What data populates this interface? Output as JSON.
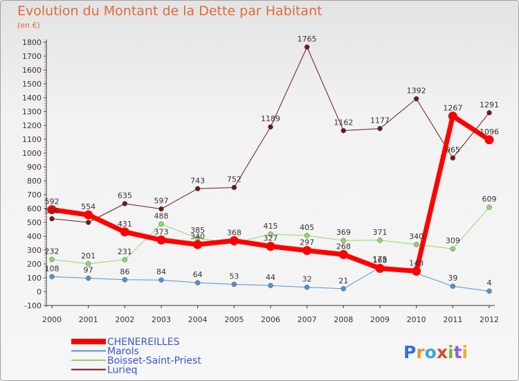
{
  "title": "Evolution du Montant de la Dette par Habitant",
  "unit": "(en €)",
  "brand": {
    "text": "Proxiti",
    "letter_colors": [
      "#2f6fd6",
      "#e8952a",
      "#3aa6dc",
      "#e2442d",
      "#6abf3a",
      "#9c5ad0",
      "#e8b22a"
    ]
  },
  "chart_data": {
    "type": "line",
    "title": "Evolution du Montant de la Dette par Habitant",
    "ylabel": "(en €)",
    "xlabel": "",
    "x": [
      "2000",
      "2001",
      "2002",
      "2003",
      "2004",
      "2005",
      "2006",
      "2007",
      "2008",
      "2009",
      "2010",
      "2011",
      "2012"
    ],
    "yticks": [
      -100,
      0,
      100,
      200,
      300,
      400,
      500,
      600,
      700,
      800,
      900,
      1000,
      1100,
      1200,
      1300,
      1400,
      1500,
      1600,
      1700,
      1800
    ],
    "ylim": [
      -100,
      1800
    ],
    "grid": false,
    "legend": "bottom-left",
    "series": [
      {
        "name": "Lurieq",
        "color": "#6b1b1b",
        "marker": "#6b1b1b",
        "width": 1,
        "r": 3.5,
        "values": [
          526,
          500,
          635,
          597,
          743,
          752,
          1189,
          1765,
          1162,
          1177,
          1392,
          965,
          1291
        ],
        "labels": [
          "526",
          "",
          "635",
          "597",
          "743",
          "752",
          "1189",
          "1765",
          "1162",
          "1177",
          "1392",
          "965",
          "1291"
        ]
      },
      {
        "name": "Boisset-Saint-Priest",
        "color": "#8fd86a",
        "marker": "#8fd86a",
        "width": 1,
        "r": 3.5,
        "values": [
          232,
          201,
          231,
          488,
          385,
          350,
          415,
          405,
          369,
          371,
          340,
          309,
          609
        ],
        "labels": [
          "232",
          "201",
          "231",
          "488",
          "385",
          "",
          "415",
          "405",
          "369",
          "371",
          "340",
          "309",
          "609"
        ]
      },
      {
        "name": "Marols",
        "color": "#4f93cf",
        "marker": "#4f93cf",
        "width": 1,
        "r": 3.5,
        "values": [
          108,
          97,
          86,
          84,
          64,
          53,
          44,
          32,
          21,
          175,
          133,
          39,
          4
        ],
        "labels": [
          "108",
          "97",
          "86",
          "84",
          "64",
          "53",
          "44",
          "32",
          "21",
          "175",
          "",
          "39",
          "4"
        ]
      },
      {
        "name": "CHENEREILLES",
        "color": "#ff0000",
        "marker": "#ff0000",
        "width": 7,
        "r": 6.5,
        "values": [
          592,
          554,
          431,
          373,
          340,
          368,
          327,
          297,
          268,
          168,
          148,
          1267,
          1096
        ],
        "labels": [
          "592",
          "554",
          "431",
          "373",
          "340",
          "368",
          "327",
          "297",
          "268",
          "168",
          "148",
          "1267",
          "1096"
        ]
      }
    ]
  },
  "legend_items": [
    {
      "name": "CHENEREILLES",
      "color": "#ff0000",
      "width": 8
    },
    {
      "name": "Marols",
      "color": "#4f93cf",
      "width": 2
    },
    {
      "name": "Boisset-Saint-Priest",
      "color": "#8fd86a",
      "width": 2
    },
    {
      "name": "Lurieq",
      "color": "#6b1b1b",
      "width": 2
    }
  ]
}
